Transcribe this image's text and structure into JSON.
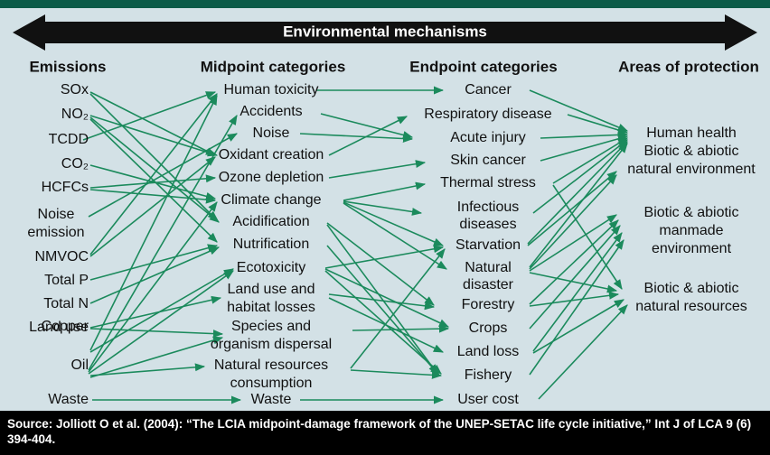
{
  "title": "Environmental mechanisms",
  "columns": [
    {
      "header": "Emissions",
      "nodes": [
        {
          "lines": [
            "SOx"
          ]
        },
        {
          "lines": [
            "NO₂"
          ]
        },
        {
          "lines": [
            "TCDD"
          ]
        },
        {
          "lines": [
            "CO₂"
          ]
        },
        {
          "lines": [
            "HCFCs"
          ]
        },
        {
          "lines": [
            "Noise",
            "emission"
          ]
        },
        {
          "lines": [
            "NMVOC"
          ]
        },
        {
          "lines": [
            "Total P"
          ]
        },
        {
          "lines": [
            "Total N"
          ]
        },
        {
          "lines": [
            "Land use"
          ]
        },
        {
          "lines": [
            "Copper"
          ]
        },
        {
          "lines": [
            "Oil"
          ]
        },
        {
          "lines": [
            "Waste"
          ]
        }
      ]
    },
    {
      "header": "Midpoint categories",
      "nodes": [
        {
          "lines": [
            "Human toxicity"
          ]
        },
        {
          "lines": [
            "Accidents"
          ]
        },
        {
          "lines": [
            "Noise"
          ]
        },
        {
          "lines": [
            "Oxidant creation"
          ]
        },
        {
          "lines": [
            "Ozone depletion"
          ]
        },
        {
          "lines": [
            "Climate change"
          ]
        },
        {
          "lines": [
            "Acidification"
          ]
        },
        {
          "lines": [
            "Nutrification"
          ]
        },
        {
          "lines": [
            "Ecotoxicity"
          ]
        },
        {
          "lines": [
            "Land use and",
            "habitat losses"
          ]
        },
        {
          "lines": [
            "Species and",
            "organism dispersal"
          ]
        },
        {
          "lines": [
            "Natural resources",
            "consumption"
          ]
        },
        {
          "lines": [
            "Waste"
          ]
        }
      ]
    },
    {
      "header": "Endpoint categories",
      "nodes": [
        {
          "lines": [
            "Cancer"
          ]
        },
        {
          "lines": [
            "Respiratory disease"
          ]
        },
        {
          "lines": [
            "Acute injury"
          ]
        },
        {
          "lines": [
            "Skin cancer"
          ]
        },
        {
          "lines": [
            "Thermal stress"
          ]
        },
        {
          "lines": [
            "Infectious",
            "diseases"
          ]
        },
        {
          "lines": [
            "Starvation"
          ]
        },
        {
          "lines": [
            "Natural",
            "disaster"
          ]
        },
        {
          "lines": [
            "Forestry"
          ]
        },
        {
          "lines": [
            "Crops"
          ]
        },
        {
          "lines": [
            "Land loss"
          ]
        },
        {
          "lines": [
            "Fishery"
          ]
        },
        {
          "lines": [
            "User cost"
          ]
        }
      ]
    },
    {
      "header": "Areas of protection",
      "nodes": [
        {
          "lines": [
            "Human health"
          ]
        },
        {
          "lines": [
            "Biotic & abiotic",
            "natural environment"
          ]
        },
        {
          "lines": [
            "Biotic & abiotic",
            "manmade",
            "environment"
          ]
        },
        {
          "lines": [
            "Biotic & abiotic",
            "natural resources"
          ]
        }
      ]
    }
  ],
  "source": "Source: Jolliott O et al. (2004): “The LCIA midpoint-damage framework of the UNEP-SETAC life cycle initiative,” Int J of LCA 9 (6) 394-404."
}
